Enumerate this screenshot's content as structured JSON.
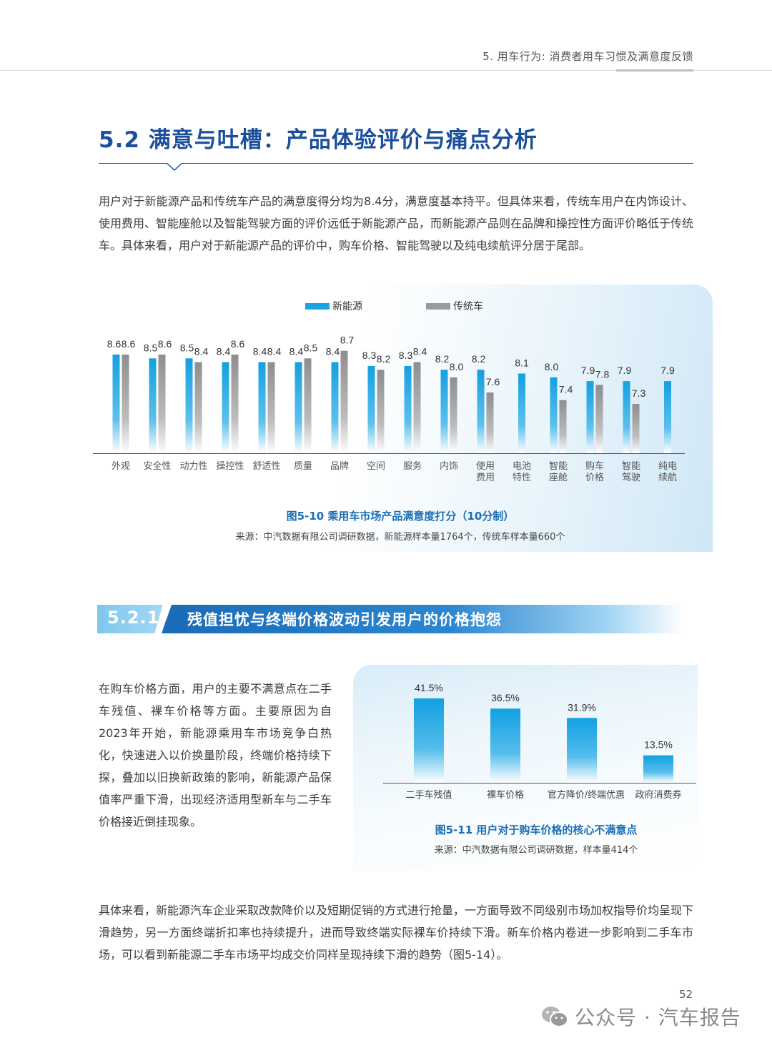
{
  "header": {
    "running_title": "5. 用车行为: 消费者用车习惯及满意度反馈"
  },
  "section": {
    "title": "5.2 满意与吐槽：产品体验评价与痛点分析"
  },
  "paragraphs": {
    "p1": "用户对于新能源产品和传统车产品的满意度得分均为8.4分，满意度基本持平。但具体来看，传统车用户在内饰设计、使用费用、智能座舱以及智能驾驶方面的评价远低于新能源产品，而新能源产品则在品牌和操控性方面评价略低于传统车。具体来看，用户对于新能源产品的评价中，购车价格、智能驾驶以及纯电续航评分居于尾部。",
    "p2": "在购车价格方面，用户的主要不满意点在二手车残值、裸车价格等方面。主要原因为自2023年开始，新能源乘用车市场竞争白热化，快速进入以价换量阶段，终端价格持续下探，叠加以旧换新政策的影响，新能源产品保值率严重下滑，出现经济适用型新车与二手车价格接近倒挂现象。",
    "p3": "具体来看，新能源汽车企业采取改款降价以及短期促销的方式进行抢量，一方面导致不同级别市场加权指导价均呈现下滑趋势，另一方面终端折扣率也持续提升，进而导致终端实际裸车价持续下滑。新车价格内卷进一步影响到二手车市场，可以看到新能源二手车市场平均成交价同样呈现持续下滑的趋势（图5-14）。"
  },
  "figure1": {
    "caption": "图5-10 乘用车市场产品满意度打分（10分制）",
    "source": "来源：中汽数据有限公司调研数据，新能源样本量1764个，传统车样本量660个"
  },
  "subsection": {
    "number": "5.2.1",
    "title": "残值担忧与终端价格波动引发用户的价格抱怨"
  },
  "figure2": {
    "caption": "图5-11 用户对于购车价格的核心不满意点",
    "source": "来源：中汽数据有限公司调研数据，样本量414个"
  },
  "footer": {
    "page_number": "52",
    "watermark": "公众号 · 汽车报告"
  },
  "colors": {
    "nev": "#1aa3e0",
    "ice": "#9a9a9a",
    "title_blue": "#1b4f9c",
    "caption_blue": "#1b6fb5"
  },
  "chart_data": [
    {
      "type": "bar",
      "categories": [
        [
          "外观"
        ],
        [
          "安全性"
        ],
        [
          "动力性"
        ],
        [
          "操控性"
        ],
        [
          "舒适性"
        ],
        [
          "质量"
        ],
        [
          "品牌"
        ],
        [
          "空间"
        ],
        [
          "服务"
        ],
        [
          "内饰"
        ],
        [
          "使用",
          "费用"
        ],
        [
          "电池",
          "特性"
        ],
        [
          "智能",
          "座舱"
        ],
        [
          "购车",
          "价格"
        ],
        [
          "智能",
          "驾驶"
        ],
        [
          "纯电",
          "续航"
        ]
      ],
      "series": [
        {
          "name": "新能源",
          "values": [
            8.6,
            8.5,
            8.5,
            8.4,
            8.4,
            8.4,
            8.4,
            8.3,
            8.3,
            8.2,
            8.2,
            8.1,
            8.0,
            7.9,
            7.9,
            7.9
          ]
        },
        {
          "name": "传统车",
          "values": [
            8.6,
            8.6,
            8.4,
            8.6,
            8.4,
            8.5,
            8.7,
            8.2,
            8.4,
            8.0,
            7.6,
            null,
            7.4,
            7.8,
            7.3,
            null
          ]
        }
      ],
      "value_labels": {
        "nev": [
          "8.6",
          "8.5",
          "8.5",
          "8.4",
          "8.4",
          "8.4",
          "8.4",
          "8.3",
          "8.3",
          "8.2",
          "8.2",
          "8.1",
          "8.0",
          "7.9",
          "7.9",
          "7.9"
        ],
        "ice": [
          "8.6",
          "8.6",
          "8.4",
          "8.6",
          "8.4",
          "8.5",
          "8.7",
          "8.2",
          "8.4",
          "8.0",
          "7.6",
          "",
          "7.4",
          "7.8",
          "7.3",
          ""
        ]
      },
      "legend": [
        "新能源",
        "传统车"
      ],
      "legend_position": "top-center",
      "grid": false
    },
    {
      "type": "bar",
      "categories": [
        "二手车残值",
        "裸车价格",
        "官方降价/终端优惠",
        "政府消费券"
      ],
      "values": [
        41.5,
        36.5,
        31.9,
        13.5
      ],
      "value_labels": [
        "41.5%",
        "36.5%",
        "31.9%",
        "13.5%"
      ],
      "grid": false
    }
  ]
}
